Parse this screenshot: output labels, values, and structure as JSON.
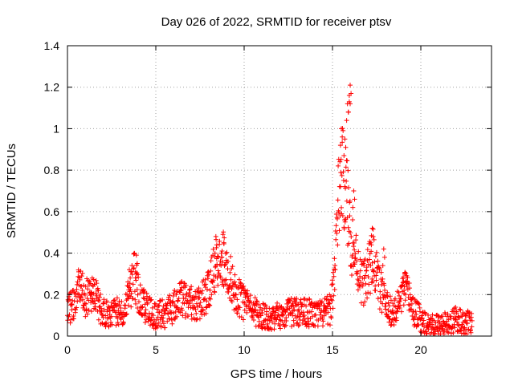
{
  "chart_data": {
    "type": "scatter",
    "title": "Day 026 of 2022, SRMTID for receiver ptsv",
    "xlabel": "GPS time / hours",
    "ylabel": "SRMTID / TECUs",
    "xlim": [
      0,
      24
    ],
    "ylim": [
      0,
      1.4
    ],
    "x_ticks": [
      0,
      5,
      10,
      15,
      20
    ],
    "x_tick_labels": [
      "0",
      "5",
      "10",
      "15",
      "20"
    ],
    "y_ticks": [
      0,
      0.2,
      0.4,
      0.6,
      0.8,
      1,
      1.2,
      1.4
    ],
    "y_tick_labels": [
      "0",
      "0.2",
      "0.4",
      "0.6",
      "0.8",
      "1",
      "1.2",
      "1.4"
    ],
    "grid": true,
    "marker": "+",
    "color": "#ff0000",
    "series": [
      {
        "name": "SRMTID",
        "profile": [
          [
            0.0,
            0.12
          ],
          [
            0.3,
            0.15
          ],
          [
            0.6,
            0.22
          ],
          [
            0.8,
            0.24
          ],
          [
            1.0,
            0.18
          ],
          [
            1.3,
            0.2
          ],
          [
            1.5,
            0.24
          ],
          [
            1.8,
            0.13
          ],
          [
            2.3,
            0.11
          ],
          [
            2.8,
            0.12
          ],
          [
            3.2,
            0.13
          ],
          [
            3.5,
            0.22
          ],
          [
            3.8,
            0.3
          ],
          [
            4.0,
            0.2
          ],
          [
            4.3,
            0.15
          ],
          [
            4.7,
            0.12
          ],
          [
            5.0,
            0.1
          ],
          [
            5.5,
            0.11
          ],
          [
            6.0,
            0.14
          ],
          [
            6.5,
            0.18
          ],
          [
            7.0,
            0.16
          ],
          [
            7.5,
            0.16
          ],
          [
            8.0,
            0.22
          ],
          [
            8.3,
            0.32
          ],
          [
            8.6,
            0.36
          ],
          [
            8.9,
            0.38
          ],
          [
            9.2,
            0.3
          ],
          [
            9.5,
            0.2
          ],
          [
            10.0,
            0.16
          ],
          [
            10.5,
            0.12
          ],
          [
            11.0,
            0.1
          ],
          [
            11.5,
            0.09
          ],
          [
            12.0,
            0.1
          ],
          [
            12.5,
            0.11
          ],
          [
            13.0,
            0.12
          ],
          [
            13.5,
            0.12
          ],
          [
            14.0,
            0.1
          ],
          [
            14.5,
            0.11
          ],
          [
            14.9,
            0.13
          ],
          [
            15.1,
            0.3
          ],
          [
            15.3,
            0.6
          ],
          [
            15.5,
            0.78
          ],
          [
            15.7,
            0.72
          ],
          [
            15.9,
            0.6
          ],
          [
            16.1,
            0.45
          ],
          [
            16.4,
            0.35
          ],
          [
            16.7,
            0.25
          ],
          [
            17.0,
            0.3
          ],
          [
            17.3,
            0.38
          ],
          [
            17.6,
            0.25
          ],
          [
            17.9,
            0.18
          ],
          [
            18.2,
            0.12
          ],
          [
            18.6,
            0.12
          ],
          [
            19.0,
            0.22
          ],
          [
            19.3,
            0.2
          ],
          [
            19.6,
            0.12
          ],
          [
            20.0,
            0.08
          ],
          [
            20.5,
            0.06
          ],
          [
            21.0,
            0.05
          ],
          [
            21.5,
            0.06
          ],
          [
            22.0,
            0.08
          ],
          [
            22.5,
            0.06
          ],
          [
            22.9,
            0.07
          ]
        ],
        "spikes": [
          [
            0.7,
            0.28
          ],
          [
            1.4,
            0.28
          ],
          [
            3.5,
            0.32
          ],
          [
            3.9,
            0.39
          ],
          [
            4.3,
            0.22
          ],
          [
            8.4,
            0.48
          ],
          [
            8.8,
            0.49
          ],
          [
            15.5,
            1.0
          ],
          [
            15.7,
            0.95
          ],
          [
            15.85,
            1.12
          ],
          [
            15.95,
            1.16
          ],
          [
            16.0,
            1.21
          ],
          [
            16.2,
            0.7
          ],
          [
            17.25,
            0.52
          ],
          [
            17.9,
            0.42
          ],
          [
            19.1,
            0.3
          ]
        ],
        "x_start": 0.0,
        "x_end": 22.9,
        "n_points": 1400
      }
    ]
  }
}
